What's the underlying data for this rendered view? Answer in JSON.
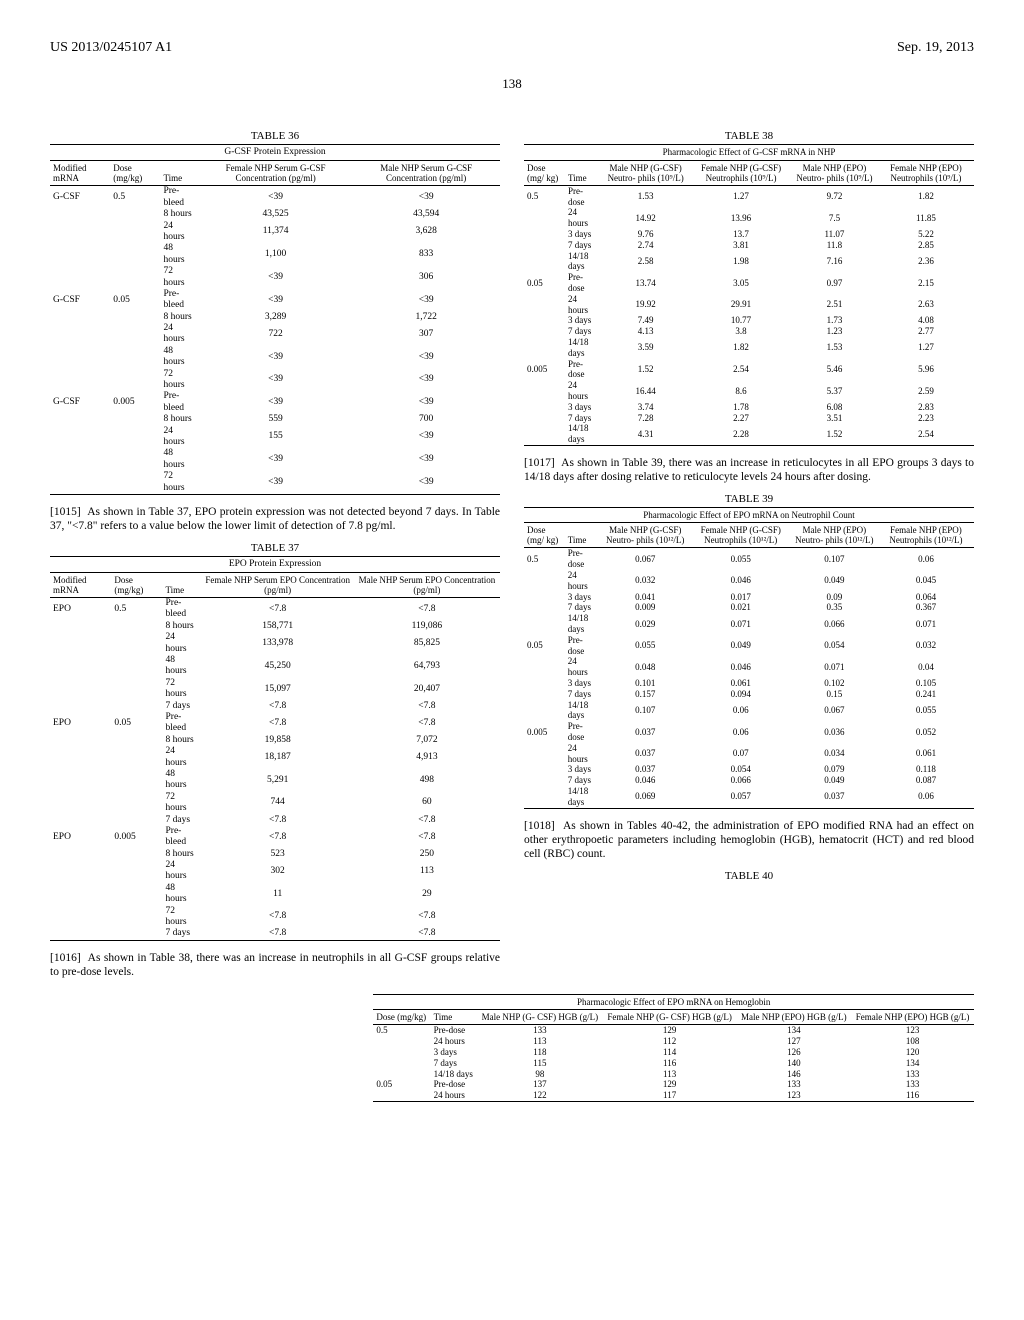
{
  "header": {
    "left": "US 2013/0245107 A1",
    "right": "Sep. 19, 2013",
    "page": "138"
  },
  "t36": {
    "caption": "TABLE 36",
    "title": "G-CSF Protein Expression",
    "headers": [
      "Modified mRNA",
      "Dose (mg/kg)",
      "Time",
      "Female NHP Serum G-CSF Concentration (pg/ml)",
      "Male NHP Serum G-CSF Concentration (pg/ml)"
    ],
    "rows": [
      [
        "G-CSF",
        "0.5",
        "Pre-bleed",
        "<39",
        "<39"
      ],
      [
        "",
        "",
        "8 hours",
        "43,525",
        "43,594"
      ],
      [
        "",
        "",
        "24 hours",
        "11,374",
        "3,628"
      ],
      [
        "",
        "",
        "48 hours",
        "1,100",
        "833"
      ],
      [
        "",
        "",
        "72 hours",
        "<39",
        "306"
      ],
      [
        "G-CSF",
        "0.05",
        "Pre-bleed",
        "<39",
        "<39"
      ],
      [
        "",
        "",
        "8 hours",
        "3,289",
        "1,722"
      ],
      [
        "",
        "",
        "24 hours",
        "722",
        "307"
      ],
      [
        "",
        "",
        "48 hours",
        "<39",
        "<39"
      ],
      [
        "",
        "",
        "72 hours",
        "<39",
        "<39"
      ],
      [
        "G-CSF",
        "0.005",
        "Pre-bleed",
        "<39",
        "<39"
      ],
      [
        "",
        "",
        "8 hours",
        "559",
        "700"
      ],
      [
        "",
        "",
        "24 hours",
        "155",
        "<39"
      ],
      [
        "",
        "",
        "48 hours",
        "<39",
        "<39"
      ],
      [
        "",
        "",
        "72 hours",
        "<39",
        "<39"
      ]
    ]
  },
  "p1015": "As shown in Table 37, EPO protein expression was not detected beyond 7 days. In Table 37, \"<7.8\" refers to a value below the lower limit of detection of 7.8 pg/ml.",
  "t37": {
    "caption": "TABLE 37",
    "title": "EPO Protein Expression",
    "headers": [
      "Modified mRNA",
      "Dose (mg/kg)",
      "Time",
      "Female NHP Serum EPO Concentration (pg/ml)",
      "Male NHP Serum EPO Concentration (pg/ml)"
    ],
    "rows": [
      [
        "EPO",
        "0.5",
        "Pre-bleed",
        "<7.8",
        "<7.8"
      ],
      [
        "",
        "",
        "8 hours",
        "158,771",
        "119,086"
      ],
      [
        "",
        "",
        "24 hours",
        "133,978",
        "85,825"
      ],
      [
        "",
        "",
        "48 hours",
        "45,250",
        "64,793"
      ],
      [
        "",
        "",
        "72 hours",
        "15,097",
        "20,407"
      ],
      [
        "",
        "",
        "7 days",
        "<7.8",
        "<7.8"
      ],
      [
        "EPO",
        "0.05",
        "Pre-bleed",
        "<7.8",
        "<7.8"
      ],
      [
        "",
        "",
        "8 hours",
        "19,858",
        "7,072"
      ],
      [
        "",
        "",
        "24 hours",
        "18,187",
        "4,913"
      ],
      [
        "",
        "",
        "48 hours",
        "5,291",
        "498"
      ],
      [
        "",
        "",
        "72 hours",
        "744",
        "60"
      ],
      [
        "",
        "",
        "7 days",
        "<7.8",
        "<7.8"
      ],
      [
        "EPO",
        "0.005",
        "Pre-bleed",
        "<7.8",
        "<7.8"
      ],
      [
        "",
        "",
        "8 hours",
        "523",
        "250"
      ],
      [
        "",
        "",
        "24 hours",
        "302",
        "113"
      ],
      [
        "",
        "",
        "48 hours",
        "11",
        "29"
      ],
      [
        "",
        "",
        "72 hours",
        "<7.8",
        "<7.8"
      ],
      [
        "",
        "",
        "7 days",
        "<7.8",
        "<7.8"
      ]
    ]
  },
  "p1016": "As shown in Table 38, there was an increase in neutrophils in all G-CSF groups relative to pre-dose levels.",
  "t38": {
    "caption": "TABLE 38",
    "title": "Pharmacologic Effect of G-CSF mRNA in NHP",
    "headers": [
      "Dose (mg/ kg)",
      "Time",
      "Male NHP (G-CSF) Neutro- phils (10⁹/L)",
      "Female NHP (G-CSF) Neutrophils (10⁹/L)",
      "Male NHP (EPO) Neutro- phils (10⁹/L)",
      "Female NHP (EPO) Neutrophils (10⁹/L)"
    ],
    "rows": [
      [
        "0.5",
        "Pre-dose",
        "1.53",
        "1.27",
        "9.72",
        "1.82"
      ],
      [
        "",
        "24 hours",
        "14.92",
        "13.96",
        "7.5",
        "11.85"
      ],
      [
        "",
        "3 days",
        "9.76",
        "13.7",
        "11.07",
        "5.22"
      ],
      [
        "",
        "7 days",
        "2.74",
        "3.81",
        "11.8",
        "2.85"
      ],
      [
        "",
        "14/18 days",
        "2.58",
        "1.98",
        "7.16",
        "2.36"
      ],
      [
        "0.05",
        "Pre-dose",
        "13.74",
        "3.05",
        "0.97",
        "2.15"
      ],
      [
        "",
        "24 hours",
        "19.92",
        "29.91",
        "2.51",
        "2.63"
      ],
      [
        "",
        "3 days",
        "7.49",
        "10.77",
        "1.73",
        "4.08"
      ],
      [
        "",
        "7 days",
        "4.13",
        "3.8",
        "1.23",
        "2.77"
      ],
      [
        "",
        "14/18 days",
        "3.59",
        "1.82",
        "1.53",
        "1.27"
      ],
      [
        "0.005",
        "Pre-dose",
        "1.52",
        "2.54",
        "5.46",
        "5.96"
      ],
      [
        "",
        "24 hours",
        "16.44",
        "8.6",
        "5.37",
        "2.59"
      ],
      [
        "",
        "3 days",
        "3.74",
        "1.78",
        "6.08",
        "2.83"
      ],
      [
        "",
        "7 days",
        "7.28",
        "2.27",
        "3.51",
        "2.23"
      ],
      [
        "",
        "14/18 days",
        "4.31",
        "2.28",
        "1.52",
        "2.54"
      ]
    ]
  },
  "p1017": "As shown in Table 39, there was an increase in reticulocytes in all EPO groups 3 days to 14/18 days after dosing relative to reticulocyte levels 24 hours after dosing.",
  "t39": {
    "caption": "TABLE 39",
    "title": "Pharmacologic Effect of EPO mRNA on Neutrophil Count",
    "headers": [
      "Dose (mg/ kg)",
      "Time",
      "Male NHP (G-CSF) Neutro- phils (10¹²/L)",
      "Female NHP (G-CSF) Neutrophils (10¹²/L)",
      "Male NHP (EPO) Neutro- phils (10¹²/L)",
      "Female NHP (EPO) Neutrophils (10¹²/L)"
    ],
    "rows": [
      [
        "0.5",
        "Pre-dose",
        "0.067",
        "0.055",
        "0.107",
        "0.06"
      ],
      [
        "",
        "24 hours",
        "0.032",
        "0.046",
        "0.049",
        "0.045"
      ],
      [
        "",
        "3 days",
        "0.041",
        "0.017",
        "0.09",
        "0.064"
      ],
      [
        "",
        "7 days",
        "0.009",
        "0.021",
        "0.35",
        "0.367"
      ],
      [
        "",
        "14/18 days",
        "0.029",
        "0.071",
        "0.066",
        "0.071"
      ],
      [
        "0.05",
        "Pre-dose",
        "0.055",
        "0.049",
        "0.054",
        "0.032"
      ],
      [
        "",
        "24 hours",
        "0.048",
        "0.046",
        "0.071",
        "0.04"
      ],
      [
        "",
        "3 days",
        "0.101",
        "0.061",
        "0.102",
        "0.105"
      ],
      [
        "",
        "7 days",
        "0.157",
        "0.094",
        "0.15",
        "0.241"
      ],
      [
        "",
        "14/18 days",
        "0.107",
        "0.06",
        "0.067",
        "0.055"
      ],
      [
        "0.005",
        "Pre-dose",
        "0.037",
        "0.06",
        "0.036",
        "0.052"
      ],
      [
        "",
        "24 hours",
        "0.037",
        "0.07",
        "0.034",
        "0.061"
      ],
      [
        "",
        "3 days",
        "0.037",
        "0.054",
        "0.079",
        "0.118"
      ],
      [
        "",
        "7 days",
        "0.046",
        "0.066",
        "0.049",
        "0.087"
      ],
      [
        "",
        "14/18 days",
        "0.069",
        "0.057",
        "0.037",
        "0.06"
      ]
    ]
  },
  "p1018": "As shown in Tables 40-42, the administration of EPO modified RNA had an effect on other erythropoetic parameters including hemoglobin (HGB), hematocrit (HCT) and red blood cell (RBC) count.",
  "t40": {
    "caption": "TABLE 40",
    "title": "Pharmacologic Effect of EPO mRNA on Hemoglobin",
    "headers": [
      "Dose (mg/kg)",
      "Time",
      "Male NHP (G- CSF) HGB (g/L)",
      "Female NHP (G- CSF) HGB (g/L)",
      "Male NHP (EPO) HGB (g/L)",
      "Female NHP (EPO) HGB (g/L)"
    ],
    "rows": [
      [
        "0.5",
        "Pre-dose",
        "133",
        "129",
        "134",
        "123"
      ],
      [
        "",
        "24 hours",
        "113",
        "112",
        "127",
        "108"
      ],
      [
        "",
        "3 days",
        "118",
        "114",
        "126",
        "120"
      ],
      [
        "",
        "7 days",
        "115",
        "116",
        "140",
        "134"
      ],
      [
        "",
        "14/18 days",
        "98",
        "113",
        "146",
        "133"
      ],
      [
        "0.05",
        "Pre-dose",
        "137",
        "129",
        "133",
        "133"
      ],
      [
        "",
        "24 hours",
        "122",
        "117",
        "123",
        "116"
      ]
    ]
  },
  "nums": {
    "p1015": "[1015]",
    "p1016": "[1016]",
    "p1017": "[1017]",
    "p1018": "[1018]"
  }
}
